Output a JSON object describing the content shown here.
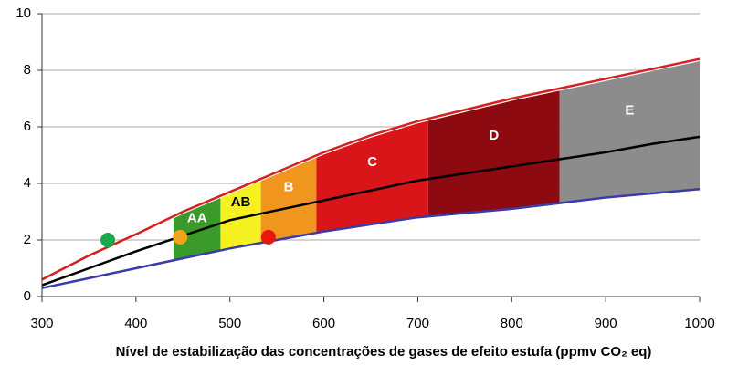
{
  "chart_data": {
    "type": "band",
    "x_label": "Nível de estabilização das concentrações de gases de efeito estufa (ppmv CO₂ eq)",
    "xlim": [
      300,
      1000
    ],
    "xticks": [
      300,
      400,
      500,
      600,
      700,
      800,
      900,
      1000
    ],
    "ylim": [
      0,
      10
    ],
    "yticks": [
      0,
      2,
      4,
      6,
      8,
      10
    ],
    "grid": true,
    "x": [
      300,
      350,
      400,
      450,
      500,
      550,
      600,
      650,
      700,
      750,
      800,
      850,
      900,
      950,
      1000
    ],
    "series": [
      {
        "color": "#d42020",
        "values": [
          0.6,
          1.45,
          2.2,
          3.0,
          3.7,
          4.4,
          5.1,
          5.7,
          6.2,
          6.6,
          7.0,
          7.35,
          7.7,
          8.05,
          8.4
        ]
      },
      {
        "color": "#000000",
        "values": [
          0.4,
          1.0,
          1.6,
          2.15,
          2.7,
          3.05,
          3.4,
          3.75,
          4.1,
          4.35,
          4.6,
          4.85,
          5.1,
          5.4,
          5.65
        ]
      },
      {
        "color": "#3b3ba8",
        "values": [
          0.3,
          0.65,
          1.0,
          1.35,
          1.7,
          2.0,
          2.3,
          2.55,
          2.8,
          2.95,
          3.1,
          3.3,
          3.5,
          3.65,
          3.8
        ]
      }
    ],
    "bands": [
      {
        "label": "AA",
        "range": [
          440,
          490
        ],
        "color": "#3a9a2a",
        "text_color": "#ffffff"
      },
      {
        "label": "AB",
        "range": [
          490,
          533
        ],
        "color": "#f5f020",
        "text_color": "#000000"
      },
      {
        "label": "B",
        "range": [
          533,
          592
        ],
        "color": "#f0961e",
        "text_color": "#ffffff"
      },
      {
        "label": "C",
        "range": [
          592,
          711
        ],
        "color": "#d9151a",
        "text_color": "#ffffff"
      },
      {
        "label": "D",
        "range": [
          711,
          851
        ],
        "color": "#8c0a10",
        "text_color": "#ffffff"
      },
      {
        "label": "E",
        "range": [
          851,
          1000
        ],
        "color": "#8c8c8c",
        "text_color": "#ffffff"
      }
    ],
    "points": [
      {
        "x": 370,
        "y": 2.0,
        "color": "#1aa84a"
      },
      {
        "x": 447,
        "y": 2.1,
        "color": "#f5a31a"
      },
      {
        "x": 541,
        "y": 2.1,
        "color": "#e8160f"
      }
    ]
  }
}
